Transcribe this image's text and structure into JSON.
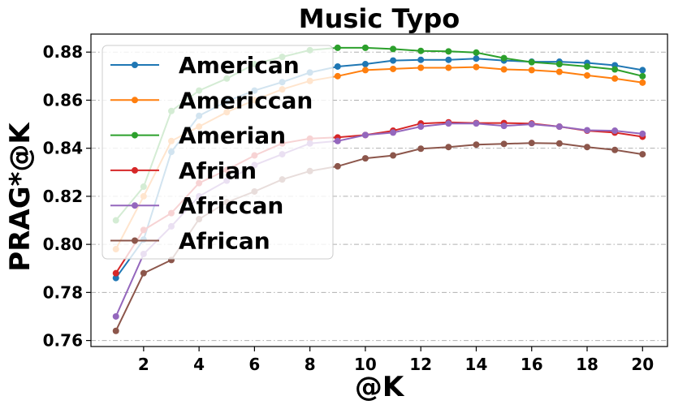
{
  "chart_data": {
    "type": "line",
    "title": "Music Typo",
    "xlabel": "@K",
    "ylabel": "PRAG*@K",
    "x": [
      1,
      2,
      3,
      4,
      5,
      6,
      7,
      8,
      9,
      10,
      11,
      12,
      13,
      14,
      15,
      16,
      17,
      18,
      19,
      20
    ],
    "xticks": [
      2,
      4,
      6,
      8,
      10,
      12,
      14,
      16,
      18,
      20
    ],
    "yticks": [
      0.76,
      0.78,
      0.8,
      0.82,
      0.84,
      0.86,
      0.88
    ],
    "ytick_labels": [
      "0.76",
      "0.78",
      "0.80",
      "0.82",
      "0.84",
      "0.86",
      "0.88"
    ],
    "xlim": [
      0.1,
      20.9
    ],
    "ylim": [
      0.7575,
      0.8875
    ],
    "grid": "horizontal dash-dot",
    "legend_position": "upper-left",
    "series": [
      {
        "name": "American",
        "color": "#1f77b4",
        "values": [
          0.786,
          0.802,
          0.8385,
          0.8535,
          0.8595,
          0.864,
          0.8675,
          0.8715,
          0.874,
          0.875,
          0.8765,
          0.8768,
          0.8768,
          0.8773,
          0.8765,
          0.876,
          0.876,
          0.8755,
          0.8745,
          0.8725
        ]
      },
      {
        "name": "Americcan",
        "color": "#ff7f0e",
        "values": [
          0.798,
          0.82,
          0.843,
          0.849,
          0.855,
          0.86,
          0.8645,
          0.868,
          0.87,
          0.8725,
          0.873,
          0.8735,
          0.8735,
          0.8738,
          0.8728,
          0.8725,
          0.8718,
          0.8703,
          0.869,
          0.8673
        ]
      },
      {
        "name": "Amerian",
        "color": "#2ca02c",
        "values": [
          0.81,
          0.824,
          0.8555,
          0.864,
          0.869,
          0.875,
          0.878,
          0.8808,
          0.8818,
          0.8818,
          0.8813,
          0.8805,
          0.8803,
          0.8798,
          0.8775,
          0.8758,
          0.875,
          0.874,
          0.8728,
          0.87
        ]
      },
      {
        "name": "Afrian",
        "color": "#d62728",
        "values": [
          0.788,
          0.806,
          0.813,
          0.8255,
          0.831,
          0.837,
          0.842,
          0.844,
          0.8445,
          0.8455,
          0.8473,
          0.8503,
          0.8508,
          0.8505,
          0.8505,
          0.8503,
          0.849,
          0.8473,
          0.8465,
          0.8448
        ]
      },
      {
        "name": "Africcan",
        "color": "#9467bd",
        "values": [
          0.77,
          0.796,
          0.8075,
          0.82,
          0.8265,
          0.833,
          0.8375,
          0.842,
          0.843,
          0.8455,
          0.8465,
          0.849,
          0.8503,
          0.8503,
          0.8493,
          0.85,
          0.849,
          0.8475,
          0.8473,
          0.846
        ]
      },
      {
        "name": "African",
        "color": "#8c564b",
        "values": [
          0.764,
          0.788,
          0.7935,
          0.8105,
          0.8175,
          0.822,
          0.827,
          0.8305,
          0.8325,
          0.8358,
          0.837,
          0.8398,
          0.8405,
          0.8415,
          0.8418,
          0.8422,
          0.842,
          0.8405,
          0.8393,
          0.8375
        ]
      }
    ]
  }
}
